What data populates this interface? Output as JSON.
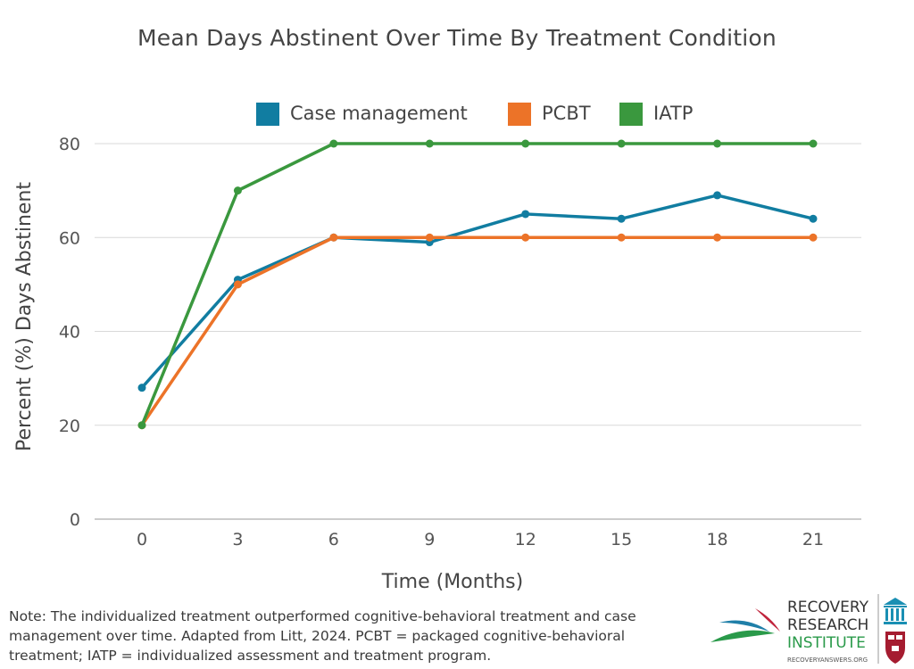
{
  "colors": {
    "case_management": "#117da1",
    "pcbt": "#ec7328",
    "iatp": "#3a983e",
    "grid": "#d9d9d9",
    "axis": "#999999"
  },
  "chart_data": {
    "type": "line",
    "title": "Mean Days Abstinent Over Time By Treatment Condition",
    "xlabel": "Time (Months)",
    "ylabel": "Percent (%) Days Abstinent",
    "x": [
      0,
      3,
      6,
      9,
      12,
      15,
      18,
      21
    ],
    "x_tick_labels": [
      "0",
      "3",
      "6",
      "9",
      "12",
      "15",
      "18",
      "21"
    ],
    "ylim": [
      0,
      80
    ],
    "y_ticks": [
      0,
      20,
      40,
      60,
      80
    ],
    "y_tick_labels": [
      "0",
      "20",
      "40",
      "60",
      "80"
    ],
    "grid": true,
    "legend_position": "top",
    "series": [
      {
        "name": "Case management",
        "color": "#117da1",
        "values": [
          28,
          51,
          60,
          59,
          65,
          64,
          69,
          64
        ]
      },
      {
        "name": "PCBT",
        "color": "#ec7328",
        "values": [
          20,
          50,
          60,
          60,
          60,
          60,
          60,
          60
        ]
      },
      {
        "name": "IATP",
        "color": "#3a983e",
        "values": [
          20,
          70,
          80,
          80,
          80,
          80,
          80,
          80
        ]
      }
    ]
  },
  "note": "Note: The individualized treatment outperformed cognitive-behavioral treatment and case management over time. Adapted from Litt, 2024. PCBT = packaged cognitive-behavioral treatment; IATP = individualized assessment and treatment program.",
  "logo": {
    "line1": "RECOVERY",
    "line2": "RESEARCH",
    "line3": "INSTITUTE",
    "website": "RECOVERYANSWERS.ORG"
  }
}
